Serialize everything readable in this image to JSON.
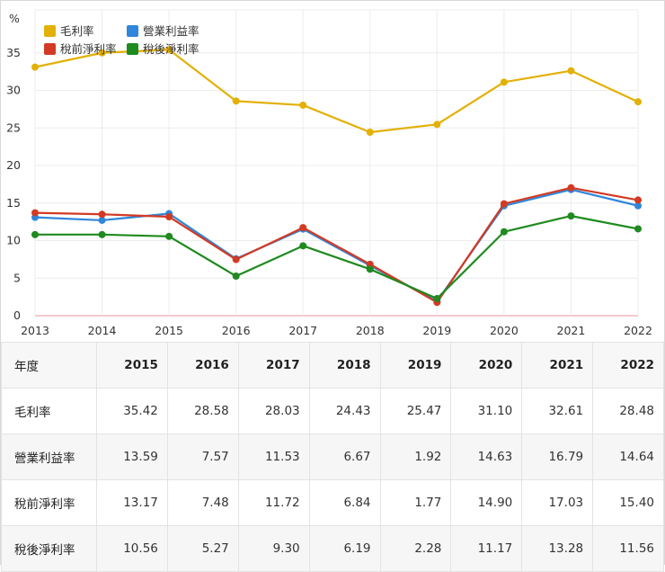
{
  "chart_data": {
    "type": "line",
    "unit_label": "%",
    "x": [
      "2013",
      "2014",
      "2015",
      "2016",
      "2017",
      "2018",
      "2019",
      "2020",
      "2021",
      "2022"
    ],
    "ylim": [
      0,
      40
    ],
    "yticks": [
      0,
      5,
      10,
      15,
      20,
      25,
      30,
      35
    ],
    "grid": true,
    "legend_position": "top-left",
    "series": [
      {
        "name": "毛利率",
        "color": "#e3b005",
        "values": [
          33.1,
          35.0,
          35.42,
          28.58,
          28.03,
          24.43,
          25.47,
          31.1,
          32.61,
          28.48
        ]
      },
      {
        "name": "營業利益率",
        "color": "#2f86db",
        "values": [
          13.1,
          12.7,
          13.59,
          7.57,
          11.53,
          6.67,
          1.92,
          14.63,
          16.79,
          14.64
        ]
      },
      {
        "name": "稅前淨利率",
        "color": "#d23a24",
        "values": [
          13.7,
          13.5,
          13.17,
          7.48,
          11.72,
          6.84,
          1.77,
          14.9,
          17.03,
          15.4
        ]
      },
      {
        "name": "稅後淨利率",
        "color": "#1f8a1f",
        "values": [
          10.8,
          10.8,
          10.56,
          5.27,
          9.3,
          6.19,
          2.28,
          11.17,
          13.28,
          11.56
        ]
      }
    ]
  },
  "table": {
    "header_label": "年度",
    "years": [
      "2015",
      "2016",
      "2017",
      "2018",
      "2019",
      "2020",
      "2021",
      "2022"
    ],
    "rows": [
      {
        "label": "毛利率",
        "values": [
          "35.42",
          "28.58",
          "28.03",
          "24.43",
          "25.47",
          "31.10",
          "32.61",
          "28.48"
        ]
      },
      {
        "label": "營業利益率",
        "values": [
          "13.59",
          "7.57",
          "11.53",
          "6.67",
          "1.92",
          "14.63",
          "16.79",
          "14.64"
        ]
      },
      {
        "label": "稅前淨利率",
        "values": [
          "13.17",
          "7.48",
          "11.72",
          "6.84",
          "1.77",
          "14.90",
          "17.03",
          "15.40"
        ]
      },
      {
        "label": "稅後淨利率",
        "values": [
          "10.56",
          "5.27",
          "9.30",
          "6.19",
          "2.28",
          "11.17",
          "13.28",
          "11.56"
        ]
      }
    ]
  }
}
